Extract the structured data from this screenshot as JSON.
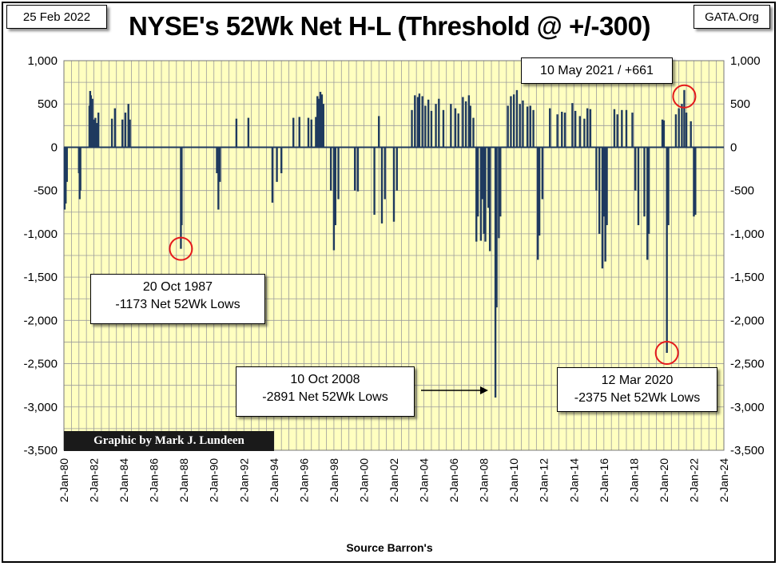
{
  "header": {
    "date": "25 Feb 2022",
    "site": "GATA.Org",
    "title": "NYSE's 52Wk Net H-L (Threshold @ +/-300)"
  },
  "footer": {
    "credit": "Graphic by Mark J. Lundeen",
    "source": "Source Barron's"
  },
  "annotations": {
    "a1987": {
      "line1": "20 Oct 1987",
      "line2": "-1173 Net 52Wk Lows"
    },
    "a2008": {
      "line1": "10 Oct 2008",
      "line2": "-2891 Net 52Wk Lows"
    },
    "a2020": {
      "line1": "12 Mar 2020",
      "line2": "-2375 Net 52Wk Lows"
    },
    "a2021": {
      "text": "10 May 2021 / +661"
    }
  },
  "colors": {
    "plot_background": "#ffffc0",
    "grid": "#9c9c9c",
    "bars": "#1f3a5f",
    "circles": "#e41a1c"
  },
  "chart_data": {
    "type": "bar",
    "title": "NYSE's 52Wk Net H-L (Threshold @ +/-300)",
    "xlabel": "Source Barron's",
    "ylabel": "",
    "ylim": [
      -3500,
      1000
    ],
    "y_ticks": [
      1000,
      500,
      0,
      -500,
      -1000,
      -1500,
      -2000,
      -2500,
      -3000,
      -3500
    ],
    "y_tick_labels": [
      "1,000",
      "500",
      "0",
      "-500",
      "-1,000",
      "-1,500",
      "-2,000",
      "-2,500",
      "-3,000",
      "-3,500"
    ],
    "x_tick_labels": [
      "2-Jan-80",
      "2-Jan-82",
      "2-Jan-84",
      "2-Jan-86",
      "2-Jan-88",
      "2-Jan-90",
      "2-Jan-92",
      "2-Jan-94",
      "2-Jan-96",
      "2-Jan-98",
      "2-Jan-00",
      "2-Jan-02",
      "2-Jan-04",
      "2-Jan-06",
      "2-Jan-08",
      "2-Jan-10",
      "2-Jan-12",
      "2-Jan-14",
      "2-Jan-16",
      "2-Jan-18",
      "2-Jan-20",
      "2-Jan-22",
      "2-Jan-24"
    ],
    "x_range_years": [
      1980,
      2024
    ],
    "grid": true,
    "series": [
      {
        "points": [
          [
            1980.05,
            -720
          ],
          [
            1980.12,
            -650
          ],
          [
            1980.2,
            -400
          ],
          [
            1981.0,
            -300
          ],
          [
            1981.05,
            -600
          ],
          [
            1981.1,
            -500
          ],
          [
            1981.7,
            480
          ],
          [
            1981.75,
            650
          ],
          [
            1981.8,
            600
          ],
          [
            1981.9,
            560
          ],
          [
            1982.0,
            320
          ],
          [
            1982.1,
            340
          ],
          [
            1982.2,
            280
          ],
          [
            1982.3,
            400
          ],
          [
            1983.2,
            330
          ],
          [
            1983.4,
            450
          ],
          [
            1983.9,
            320
          ],
          [
            1984.1,
            400
          ],
          [
            1984.3,
            500
          ],
          [
            1984.4,
            320
          ],
          [
            1987.8,
            -1173
          ],
          [
            1987.85,
            -900
          ],
          [
            1990.2,
            -300
          ],
          [
            1990.3,
            -720
          ],
          [
            1990.4,
            -400
          ],
          [
            1991.5,
            330
          ],
          [
            1992.3,
            340
          ],
          [
            1993.9,
            -640
          ],
          [
            1994.2,
            -400
          ],
          [
            1994.5,
            -300
          ],
          [
            1995.3,
            340
          ],
          [
            1995.7,
            350
          ],
          [
            1996.3,
            340
          ],
          [
            1996.5,
            320
          ],
          [
            1996.8,
            350
          ],
          [
            1996.9,
            590
          ],
          [
            1997.0,
            560
          ],
          [
            1997.1,
            640
          ],
          [
            1997.2,
            610
          ],
          [
            1997.3,
            500
          ],
          [
            1997.8,
            -500
          ],
          [
            1998.0,
            -1190
          ],
          [
            1998.1,
            -900
          ],
          [
            1998.3,
            -600
          ],
          [
            1999.4,
            -500
          ],
          [
            1999.6,
            -510
          ],
          [
            2000.7,
            -780
          ],
          [
            2001.0,
            360
          ],
          [
            2001.2,
            -880
          ],
          [
            2001.4,
            -600
          ],
          [
            2002.0,
            -860
          ],
          [
            2002.2,
            -500
          ],
          [
            2003.2,
            430
          ],
          [
            2003.4,
            600
          ],
          [
            2003.6,
            580
          ],
          [
            2003.7,
            620
          ],
          [
            2003.9,
            590
          ],
          [
            2004.1,
            480
          ],
          [
            2004.3,
            550
          ],
          [
            2004.5,
            420
          ],
          [
            2004.8,
            500
          ],
          [
            2005.0,
            560
          ],
          [
            2005.3,
            430
          ],
          [
            2005.8,
            500
          ],
          [
            2006.1,
            450
          ],
          [
            2006.3,
            390
          ],
          [
            2006.6,
            580
          ],
          [
            2006.8,
            530
          ],
          [
            2007.0,
            600
          ],
          [
            2007.1,
            480
          ],
          [
            2007.3,
            340
          ],
          [
            2007.5,
            -1090
          ],
          [
            2007.6,
            -800
          ],
          [
            2007.8,
            -1080
          ],
          [
            2007.9,
            -600
          ],
          [
            2008.0,
            -1000
          ],
          [
            2008.1,
            -1090
          ],
          [
            2008.3,
            -700
          ],
          [
            2008.4,
            -1200
          ],
          [
            2008.77,
            -2891
          ],
          [
            2008.85,
            -1850
          ],
          [
            2009.0,
            -1050
          ],
          [
            2009.1,
            -800
          ],
          [
            2009.6,
            480
          ],
          [
            2009.8,
            590
          ],
          [
            2010.0,
            610
          ],
          [
            2010.2,
            660
          ],
          [
            2010.4,
            500
          ],
          [
            2010.6,
            540
          ],
          [
            2010.9,
            470
          ],
          [
            2011.1,
            480
          ],
          [
            2011.3,
            430
          ],
          [
            2011.6,
            -1300
          ],
          [
            2011.7,
            -1020
          ],
          [
            2011.9,
            -600
          ],
          [
            2012.4,
            450
          ],
          [
            2012.9,
            380
          ],
          [
            2013.2,
            410
          ],
          [
            2013.4,
            400
          ],
          [
            2013.9,
            510
          ],
          [
            2014.1,
            420
          ],
          [
            2014.4,
            360
          ],
          [
            2014.7,
            330
          ],
          [
            2014.9,
            450
          ],
          [
            2015.1,
            440
          ],
          [
            2015.5,
            -500
          ],
          [
            2015.7,
            -1000
          ],
          [
            2015.9,
            -1400
          ],
          [
            2016.0,
            -800
          ],
          [
            2016.1,
            -1320
          ],
          [
            2016.2,
            -900
          ],
          [
            2016.7,
            440
          ],
          [
            2016.9,
            380
          ],
          [
            2017.2,
            430
          ],
          [
            2017.5,
            430
          ],
          [
            2017.9,
            400
          ],
          [
            2018.1,
            -500
          ],
          [
            2018.3,
            -900
          ],
          [
            2018.7,
            -800
          ],
          [
            2018.9,
            -1300
          ],
          [
            2019.0,
            -1000
          ],
          [
            2019.9,
            320
          ],
          [
            2020.0,
            310
          ],
          [
            2020.2,
            -2375
          ],
          [
            2020.3,
            -900
          ],
          [
            2020.8,
            380
          ],
          [
            2021.0,
            450
          ],
          [
            2021.2,
            500
          ],
          [
            2021.36,
            661
          ],
          [
            2021.5,
            400
          ],
          [
            2021.8,
            300
          ],
          [
            2022.0,
            -800
          ],
          [
            2022.1,
            -780
          ]
        ]
      }
    ]
  }
}
